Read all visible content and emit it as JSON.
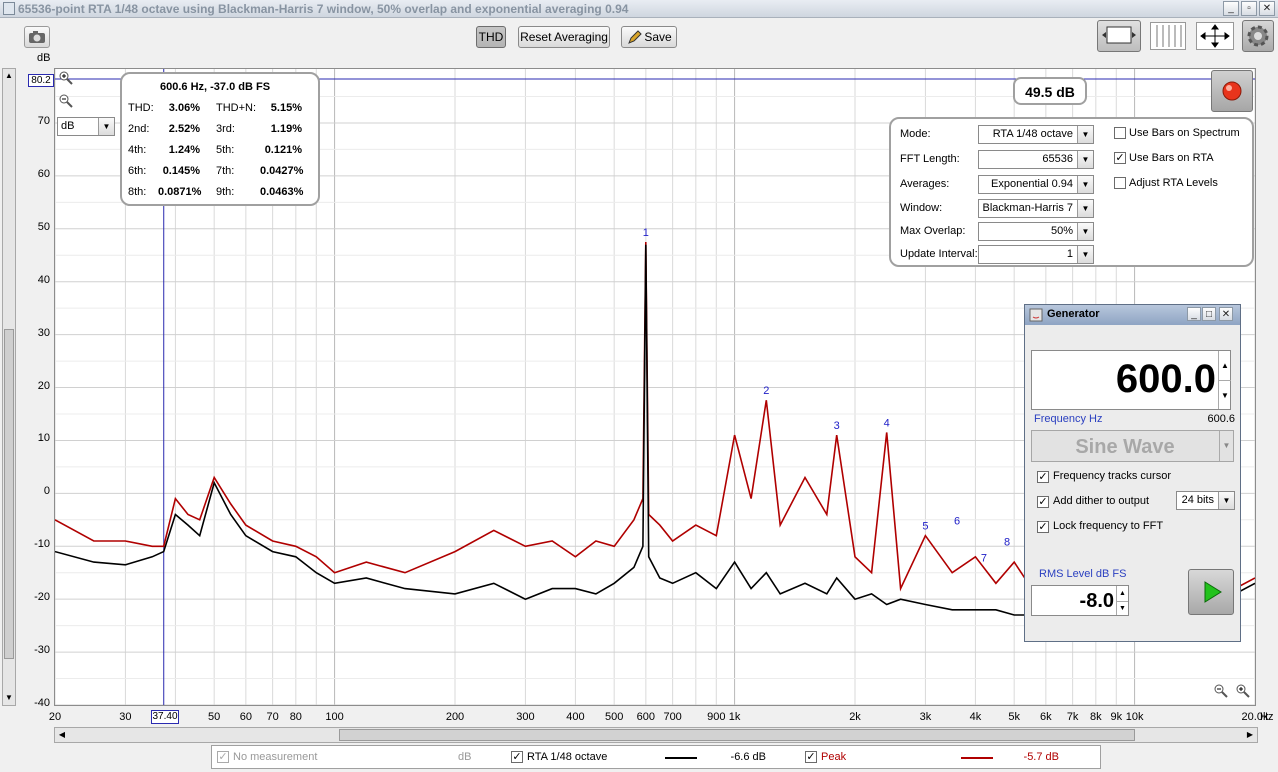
{
  "window": {
    "title": "65536-point RTA 1/48 octave using Blackman-Harris 7 window, 50% overlap and exponential averaging 0.94",
    "minimize": "_",
    "restore": "▫",
    "close": "✕"
  },
  "toolbar": {
    "thd_label": "THD",
    "reset_label": "Reset Averaging",
    "save_label": "Save"
  },
  "axis": {
    "y_unit_label": "dB",
    "y_cursor_value": "80.2",
    "y_ticks": [
      "70",
      "60",
      "50",
      "40",
      "30",
      "20",
      "10",
      "0",
      "-10",
      "-20",
      "-30",
      "-40"
    ],
    "y_min": -40,
    "y_max": 80.2,
    "x_ticks": [
      {
        "v": 20,
        "label": "20"
      },
      {
        "v": 30,
        "label": "30"
      },
      {
        "v": 50,
        "label": "50"
      },
      {
        "v": 60,
        "label": "60"
      },
      {
        "v": 70,
        "label": "70"
      },
      {
        "v": 80,
        "label": "80"
      },
      {
        "v": 100,
        "label": "100"
      },
      {
        "v": 200,
        "label": "200"
      },
      {
        "v": 300,
        "label": "300"
      },
      {
        "v": 400,
        "label": "400"
      },
      {
        "v": 500,
        "label": "500"
      },
      {
        "v": 600,
        "label": "600"
      },
      {
        "v": 700,
        "label": "700"
      },
      {
        "v": 900,
        "label": "900"
      },
      {
        "v": 1000,
        "label": "1k"
      },
      {
        "v": 2000,
        "label": "2k"
      },
      {
        "v": 3000,
        "label": "3k"
      },
      {
        "v": 4000,
        "label": "4k"
      },
      {
        "v": 5000,
        "label": "5k"
      },
      {
        "v": 6000,
        "label": "6k"
      },
      {
        "v": 7000,
        "label": "7k"
      },
      {
        "v": 8000,
        "label": "8k"
      },
      {
        "v": 9000,
        "label": "9k"
      },
      {
        "v": 10000,
        "label": "10k"
      },
      {
        "v": 20000,
        "label": "20.0k"
      }
    ],
    "x_unit_label": "Hz",
    "x_cursor_value": "37.40",
    "x_min": 20,
    "x_max": 20000,
    "unit_select": "dB"
  },
  "thd_panel": {
    "header": "600.6 Hz, -37.0 dB FS",
    "rows": [
      {
        "l1": "THD:",
        "v1": "3.06%",
        "l2": "THD+N:",
        "v2": "5.15%"
      },
      {
        "l1": "2nd:",
        "v1": "2.52%",
        "l2": "3rd:",
        "v2": "1.19%"
      },
      {
        "l1": "4th:",
        "v1": "1.24%",
        "l2": "5th:",
        "v2": "0.121%"
      },
      {
        "l1": "6th:",
        "v1": "0.145%",
        "l2": "7th:",
        "v2": "0.0427%"
      },
      {
        "l1": "8th:",
        "v1": "0.0871%",
        "l2": "9th:",
        "v2": "0.0463%"
      }
    ]
  },
  "level_readout": "49.5 dB",
  "settings": {
    "mode_label": "Mode:",
    "mode_value": "RTA 1/48 octave",
    "fft_label": "FFT Length:",
    "fft_value": "65536",
    "avg_label": "Averages:",
    "avg_value": "Exponential 0.94",
    "window_label": "Window:",
    "window_value": "Blackman-Harris 7",
    "overlap_label": "Max Overlap:",
    "overlap_value": "50%",
    "update_label": "Update Interval:",
    "update_value": "1",
    "bars_spectrum_label": "Use Bars on Spectrum",
    "bars_rta_label": "Use Bars on RTA",
    "adjust_rta_label": "Adjust RTA Levels"
  },
  "generator": {
    "title": "Generator",
    "frequency": "600.0",
    "freq_label": "Frequency Hz",
    "freq_actual": "600.6",
    "waveform": "Sine Wave",
    "tracks_cursor_label": "Frequency tracks cursor",
    "dither_label": "Add dither to output",
    "dither_bits": "24 bits",
    "lock_label": "Lock frequency to FFT",
    "rms_label": "RMS Level dB FS",
    "rms_value": "-8.0"
  },
  "legend": {
    "no_measurement": "No measurement",
    "no_measurement_unit": "dB",
    "rta_label": "RTA 1/48 octave",
    "rta_value": "-6.6 dB",
    "peak_label": "Peak",
    "peak_value": "-5.7 dB",
    "rta_color": "#000000",
    "peak_color": "#b00000"
  },
  "chart_data": {
    "type": "line",
    "xscale": "log",
    "xlim": [
      20,
      20000
    ],
    "ylim": [
      -40,
      80.2
    ],
    "grid": true,
    "series": [
      {
        "name": "RTA 1/48 octave",
        "color": "#000000",
        "points": [
          [
            20,
            -11
          ],
          [
            25,
            -13
          ],
          [
            30,
            -13.5
          ],
          [
            35,
            -12
          ],
          [
            37.4,
            -11
          ],
          [
            40,
            -4
          ],
          [
            43,
            -6
          ],
          [
            46,
            -8
          ],
          [
            50,
            2
          ],
          [
            55,
            -4
          ],
          [
            60,
            -8
          ],
          [
            70,
            -11
          ],
          [
            80,
            -12
          ],
          [
            90,
            -15
          ],
          [
            100,
            -17
          ],
          [
            120,
            -16
          ],
          [
            150,
            -18
          ],
          [
            200,
            -19
          ],
          [
            250,
            -17
          ],
          [
            300,
            -20
          ],
          [
            350,
            -18
          ],
          [
            400,
            -18
          ],
          [
            450,
            -19
          ],
          [
            500,
            -17
          ],
          [
            560,
            -14
          ],
          [
            590,
            -10
          ],
          [
            600,
            47
          ],
          [
            610,
            -12
          ],
          [
            650,
            -16
          ],
          [
            700,
            -17
          ],
          [
            800,
            -15
          ],
          [
            900,
            -18
          ],
          [
            1000,
            -13
          ],
          [
            1100,
            -18
          ],
          [
            1200,
            -15
          ],
          [
            1300,
            -19
          ],
          [
            1500,
            -17
          ],
          [
            1700,
            -19
          ],
          [
            1800,
            -16
          ],
          [
            2000,
            -20
          ],
          [
            2200,
            -19
          ],
          [
            2400,
            -21
          ],
          [
            2600,
            -20
          ],
          [
            3000,
            -21
          ],
          [
            3500,
            -22
          ],
          [
            4000,
            -22
          ],
          [
            4500,
            -22
          ],
          [
            5000,
            -23
          ],
          [
            6000,
            -23
          ],
          [
            8000,
            -23
          ],
          [
            10000,
            -22
          ],
          [
            15000,
            -22
          ],
          [
            20000,
            -17
          ]
        ]
      },
      {
        "name": "Peak",
        "color": "#b00000",
        "points": [
          [
            20,
            -5
          ],
          [
            25,
            -9
          ],
          [
            30,
            -9
          ],
          [
            35,
            -10
          ],
          [
            37.4,
            -10
          ],
          [
            40,
            -1
          ],
          [
            43,
            -4
          ],
          [
            46,
            -5
          ],
          [
            50,
            3
          ],
          [
            55,
            -2
          ],
          [
            60,
            -6
          ],
          [
            70,
            -9
          ],
          [
            80,
            -10
          ],
          [
            90,
            -12
          ],
          [
            100,
            -15
          ],
          [
            120,
            -13
          ],
          [
            150,
            -15
          ],
          [
            200,
            -11
          ],
          [
            250,
            -7
          ],
          [
            300,
            -10
          ],
          [
            350,
            -9
          ],
          [
            400,
            -12
          ],
          [
            450,
            -9
          ],
          [
            500,
            -10
          ],
          [
            560,
            -5
          ],
          [
            590,
            -1
          ],
          [
            600,
            47.5
          ],
          [
            610,
            -4
          ],
          [
            650,
            -6
          ],
          [
            700,
            -9
          ],
          [
            800,
            -6
          ],
          [
            900,
            -8
          ],
          [
            1000,
            11
          ],
          [
            1100,
            -1
          ],
          [
            1200,
            17.6
          ],
          [
            1300,
            -6
          ],
          [
            1500,
            3
          ],
          [
            1700,
            -4
          ],
          [
            1800,
            11
          ],
          [
            2000,
            -12
          ],
          [
            2200,
            -15
          ],
          [
            2400,
            11.5
          ],
          [
            2600,
            -18
          ],
          [
            3000,
            -8
          ],
          [
            3500,
            -15
          ],
          [
            4000,
            -12
          ],
          [
            4500,
            -17
          ],
          [
            5000,
            -13
          ],
          [
            6000,
            -22
          ],
          [
            8000,
            -21
          ],
          [
            10000,
            -20
          ],
          [
            15000,
            -21
          ],
          [
            20000,
            -16
          ]
        ]
      }
    ],
    "harmonics": [
      {
        "label": "1",
        "f": 600,
        "db": 47.5
      },
      {
        "label": "2",
        "f": 1200,
        "db": 17.6
      },
      {
        "label": "3",
        "f": 1800,
        "db": 11
      },
      {
        "label": "4",
        "f": 2400,
        "db": 11.5
      },
      {
        "label": "5",
        "f": 3000,
        "db": -8
      },
      {
        "label": "6",
        "f": 3600,
        "db": -7
      },
      {
        "label": "7",
        "f": 4200,
        "db": -14
      },
      {
        "label": "8",
        "f": 4800,
        "db": -11
      }
    ]
  }
}
